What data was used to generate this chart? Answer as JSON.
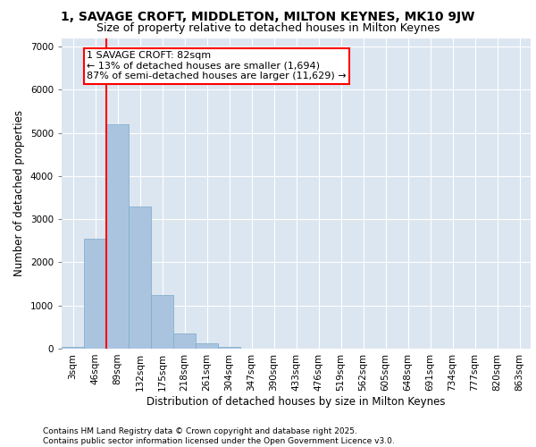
{
  "title": "1, SAVAGE CROFT, MIDDLETON, MILTON KEYNES, MK10 9JW",
  "subtitle": "Size of property relative to detached houses in Milton Keynes",
  "xlabel": "Distribution of detached houses by size in Milton Keynes",
  "ylabel": "Number of detached properties",
  "categories": [
    "3sqm",
    "46sqm",
    "89sqm",
    "132sqm",
    "175sqm",
    "218sqm",
    "261sqm",
    "304sqm",
    "347sqm",
    "390sqm",
    "433sqm",
    "476sqm",
    "519sqm",
    "562sqm",
    "605sqm",
    "648sqm",
    "691sqm",
    "734sqm",
    "777sqm",
    "820sqm",
    "863sqm"
  ],
  "values": [
    50,
    2550,
    5200,
    3300,
    1250,
    350,
    120,
    50,
    0,
    0,
    0,
    0,
    0,
    0,
    0,
    0,
    0,
    0,
    0,
    0,
    0
  ],
  "bar_color": "#aac4e0",
  "bar_edgecolor": "#7aaac8",
  "background_color": "#dce6f0",
  "vline_x": 1.5,
  "vline_color": "red",
  "annotation_text": "1 SAVAGE CROFT: 82sqm\n← 13% of detached houses are smaller (1,694)\n87% of semi-detached houses are larger (11,629) →",
  "ylim": [
    0,
    7200
  ],
  "yticks": [
    0,
    1000,
    2000,
    3000,
    4000,
    5000,
    6000,
    7000
  ],
  "footer_line1": "Contains HM Land Registry data © Crown copyright and database right 2025.",
  "footer_line2": "Contains public sector information licensed under the Open Government Licence v3.0.",
  "title_fontsize": 10,
  "subtitle_fontsize": 9,
  "axis_label_fontsize": 8.5,
  "tick_fontsize": 7.5,
  "annotation_fontsize": 8,
  "footer_fontsize": 6.5
}
